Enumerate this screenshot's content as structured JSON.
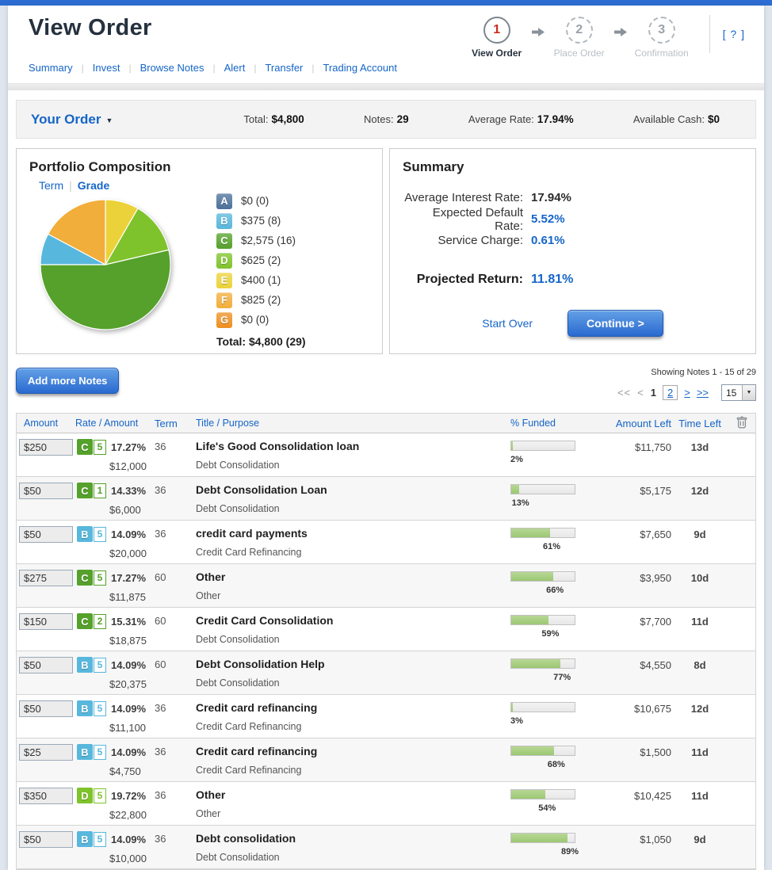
{
  "page": {
    "title": "View Order",
    "help_label": "[ ? ]"
  },
  "steps": [
    {
      "num": "1",
      "label": "View Order",
      "active": true
    },
    {
      "num": "2",
      "label": "Place Order",
      "active": false
    },
    {
      "num": "3",
      "label": "Confirmation",
      "active": false
    }
  ],
  "nav": {
    "items": [
      "Summary",
      "Invest",
      "Browse Notes",
      "Alert",
      "Transfer",
      "Trading Account"
    ]
  },
  "order_bar": {
    "title": "Your Order",
    "stats": [
      {
        "label": "Total:",
        "value": "$4,800"
      },
      {
        "label": "Notes:",
        "value": "29"
      },
      {
        "label": "Average Rate:",
        "value": "17.94%"
      },
      {
        "label": "Available Cash:",
        "value": "$0"
      }
    ]
  },
  "portfolio": {
    "title": "Portfolio Composition",
    "tabs": [
      {
        "label": "Term",
        "active": false
      },
      {
        "label": "Grade",
        "active": true
      }
    ],
    "total_label": "Total: $4,800 (29)"
  },
  "chart_data": {
    "type": "pie",
    "title": "Portfolio Composition by Grade",
    "legend_position": "right",
    "slices": [
      {
        "label": "A",
        "value": 0,
        "count": 0,
        "display": "$0 (0)",
        "color": "#4b719b"
      },
      {
        "label": "B",
        "value": 375,
        "count": 8,
        "display": "$375 (8)",
        "color": "#58b7dc"
      },
      {
        "label": "C",
        "value": 2575,
        "count": 16,
        "display": "$2,575 (16)",
        "color": "#55a12b"
      },
      {
        "label": "D",
        "value": 625,
        "count": 2,
        "display": "$625 (2)",
        "color": "#7fc32c"
      },
      {
        "label": "E",
        "value": 400,
        "count": 1,
        "display": "$400 (1)",
        "color": "#ecd23a"
      },
      {
        "label": "F",
        "value": 825,
        "count": 2,
        "display": "$825 (2)",
        "color": "#f1ae3a"
      },
      {
        "label": "G",
        "value": 0,
        "count": 0,
        "display": "$0 (0)",
        "color": "#ee8f1f"
      }
    ],
    "draw_order": [
      "E",
      "D",
      "C",
      "B",
      "F"
    ],
    "start_angle_deg": -90,
    "total": 4800,
    "total_display": "Total: $4,800 (29)"
  },
  "summary": {
    "title": "Summary",
    "rows": [
      {
        "label": "Average Interest Rate:",
        "value": "17.94%",
        "color": "#2b2b2b"
      },
      {
        "label": "Expected Default Rate:",
        "value": "5.52%",
        "color": "#1565c8"
      },
      {
        "label": "Service Charge:",
        "value": "0.61%",
        "color": "#1565c8"
      }
    ],
    "projected_label": "Projected Return:",
    "projected_value": "11.81%",
    "start_over_label": "Start Over",
    "continue_label": "Continue >"
  },
  "notes": {
    "add_button_label": "Add more Notes",
    "showing_text": "Showing Notes 1 - 15 of 29",
    "pagination": {
      "first_label": "<<",
      "prev_label": "<",
      "current_page": "1",
      "other_page": "2",
      "next_label": ">",
      "last_label": ">>",
      "page_size": "15"
    },
    "columns": [
      "Amount",
      "Rate / Amount",
      "Term",
      "Title / Purpose",
      "% Funded",
      "Amount Left",
      "Time Left"
    ],
    "rows": [
      {
        "amount": "$250",
        "grade": "C",
        "sub": "5",
        "rate": "17.27%",
        "term": "36",
        "loan_amount": "$12,000",
        "title": "Life's Good Consolidation loan",
        "purpose": "Debt Consolidation",
        "funded_pct": 2,
        "amount_left": "$11,750",
        "time_left": "13d"
      },
      {
        "amount": "$50",
        "grade": "C",
        "sub": "1",
        "rate": "14.33%",
        "term": "36",
        "loan_amount": "$6,000",
        "title": "Debt Consolidation Loan",
        "purpose": "Debt Consolidation",
        "funded_pct": 13,
        "amount_left": "$5,175",
        "time_left": "12d"
      },
      {
        "amount": "$50",
        "grade": "B",
        "sub": "5",
        "rate": "14.09%",
        "term": "36",
        "loan_amount": "$20,000",
        "title": "credit card payments",
        "purpose": "Credit Card Refinancing",
        "funded_pct": 61,
        "amount_left": "$7,650",
        "time_left": "9d"
      },
      {
        "amount": "$275",
        "grade": "C",
        "sub": "5",
        "rate": "17.27%",
        "term": "60",
        "loan_amount": "$11,875",
        "title": "Other",
        "purpose": "Other",
        "funded_pct": 66,
        "amount_left": "$3,950",
        "time_left": "10d"
      },
      {
        "amount": "$150",
        "grade": "C",
        "sub": "2",
        "rate": "15.31%",
        "term": "60",
        "loan_amount": "$18,875",
        "title": "Credit Card Consolidation",
        "purpose": "Debt Consolidation",
        "funded_pct": 59,
        "amount_left": "$7,700",
        "time_left": "11d"
      },
      {
        "amount": "$50",
        "grade": "B",
        "sub": "5",
        "rate": "14.09%",
        "term": "60",
        "loan_amount": "$20,375",
        "title": "Debt Consolidation Help",
        "purpose": "Debt Consolidation",
        "funded_pct": 77,
        "amount_left": "$4,550",
        "time_left": "8d"
      },
      {
        "amount": "$50",
        "grade": "B",
        "sub": "5",
        "rate": "14.09%",
        "term": "36",
        "loan_amount": "$11,100",
        "title": "Credit card refinancing",
        "purpose": "Credit Card Refinancing",
        "funded_pct": 3,
        "amount_left": "$10,675",
        "time_left": "12d"
      },
      {
        "amount": "$25",
        "grade": "B",
        "sub": "5",
        "rate": "14.09%",
        "term": "36",
        "loan_amount": "$4,750",
        "title": "Credit card refinancing",
        "purpose": "Credit Card Refinancing",
        "funded_pct": 68,
        "amount_left": "$1,500",
        "time_left": "11d"
      },
      {
        "amount": "$350",
        "grade": "D",
        "sub": "5",
        "rate": "19.72%",
        "term": "36",
        "loan_amount": "$22,800",
        "title": "Other",
        "purpose": "Other",
        "funded_pct": 54,
        "amount_left": "$10,425",
        "time_left": "11d"
      },
      {
        "amount": "$50",
        "grade": "B",
        "sub": "5",
        "rate": "14.09%",
        "term": "36",
        "loan_amount": "$10,000",
        "title": "Debt consolidation",
        "purpose": "Debt Consolidation",
        "funded_pct": 89,
        "amount_left": "$1,050",
        "time_left": "9d"
      }
    ]
  },
  "grade_colors": {
    "A": "#4b719b",
    "B": "#58b7dc",
    "C": "#55a12b",
    "D": "#7fc32c",
    "E": "#ecd23a",
    "F": "#f1ae3a",
    "G": "#ee8f1f"
  },
  "accent": {
    "link_blue": "#1565c8",
    "button_blue": "#2a6ad0",
    "bar_green": "#9cc873",
    "step_red": "#cd2a1e"
  }
}
